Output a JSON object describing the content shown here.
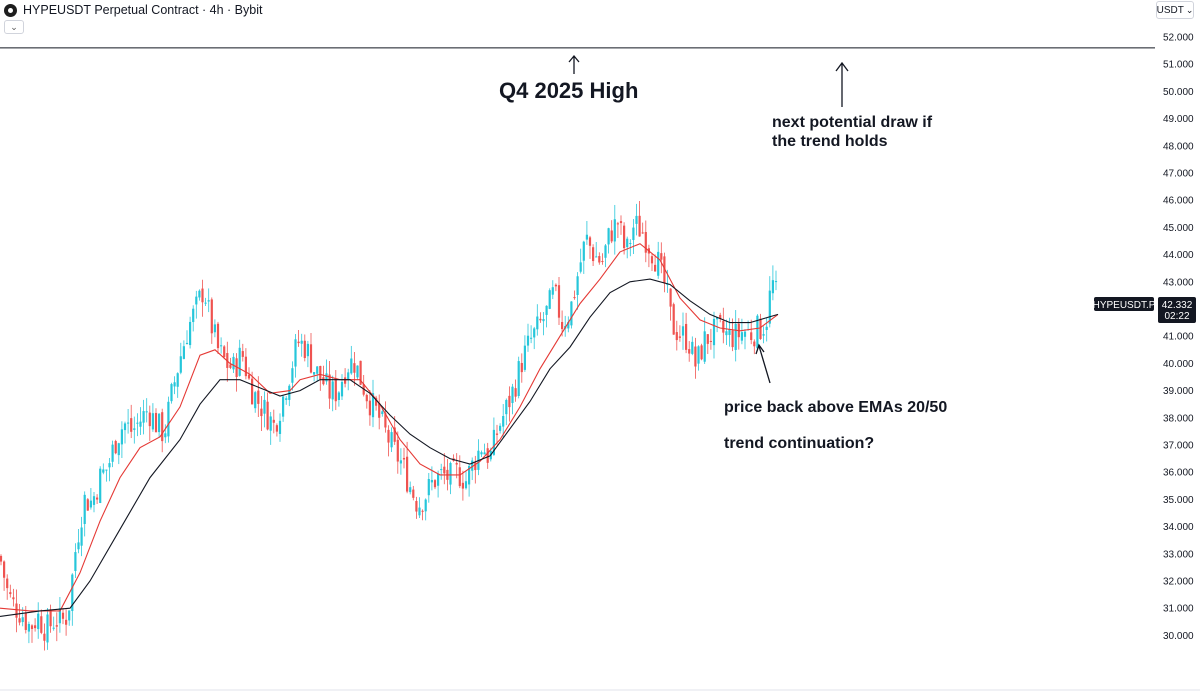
{
  "header": {
    "title": "HYPEUSDT Perpetual Contract · 4h · Bybit",
    "collapse_icon": "chevron-down-icon"
  },
  "currency": {
    "label": "USDT",
    "icon": "chevron-down-icon"
  },
  "colors": {
    "up": "#26c6da",
    "down": "#ef5350",
    "ema20": "#e53935",
    "ema50": "#131722",
    "level": "#131722",
    "axis_text": "#131722"
  },
  "chart_data": {
    "type": "candlestick",
    "symbol": "HYPEUSDT Perpetual Contract",
    "timeframe": "4h",
    "exchange": "Bybit",
    "y_axis": {
      "ticks": [
        "52.000",
        "51.000",
        "50.000",
        "49.000",
        "48.000",
        "47.000",
        "46.000",
        "45.000",
        "44.000",
        "43.000",
        "42.000",
        "41.000",
        "40.000",
        "39.000",
        "38.000",
        "37.000",
        "36.000",
        "35.000",
        "34.000",
        "33.000",
        "32.000",
        "31.000",
        "30.000"
      ],
      "range": [
        29.3,
        52.9
      ]
    },
    "last_price": {
      "symbol_label": "HYPEUSDT.P",
      "value": 42.332,
      "value_label": "42.332",
      "countdown": "02:22"
    },
    "levels": [
      {
        "name": "Q4 2025 High",
        "price": 51.6
      }
    ],
    "price_path": [
      [
        0,
        32.9
      ],
      [
        8,
        31.5
      ],
      [
        14,
        31.1
      ],
      [
        22,
        30.8
      ],
      [
        30,
        30.3
      ],
      [
        38,
        30.7
      ],
      [
        46,
        30.2
      ],
      [
        55,
        30.6
      ],
      [
        62,
        30.5
      ],
      [
        68,
        30.8
      ],
      [
        76,
        33.3
      ],
      [
        84,
        35.0
      ],
      [
        92,
        34.9
      ],
      [
        100,
        35.8
      ],
      [
        108,
        36.2
      ],
      [
        116,
        37.2
      ],
      [
        124,
        37.8
      ],
      [
        132,
        37.5
      ],
      [
        140,
        37.9
      ],
      [
        148,
        38.3
      ],
      [
        156,
        37.8
      ],
      [
        164,
        37.4
      ],
      [
        172,
        38.9
      ],
      [
        180,
        40.2
      ],
      [
        188,
        41.3
      ],
      [
        196,
        42.0
      ],
      [
        204,
        42.8
      ],
      [
        210,
        41.6
      ],
      [
        218,
        40.5
      ],
      [
        226,
        40.0
      ],
      [
        234,
        39.8
      ],
      [
        242,
        40.4
      ],
      [
        250,
        39.2
      ],
      [
        258,
        38.6
      ],
      [
        266,
        38.2
      ],
      [
        274,
        37.7
      ],
      [
        282,
        38.6
      ],
      [
        290,
        39.7
      ],
      [
        298,
        40.8
      ],
      [
        306,
        40.6
      ],
      [
        314,
        39.8
      ],
      [
        322,
        39.4
      ],
      [
        330,
        38.9
      ],
      [
        338,
        39.0
      ],
      [
        346,
        39.9
      ],
      [
        354,
        40.1
      ],
      [
        362,
        39.3
      ],
      [
        370,
        38.6
      ],
      [
        378,
        38.1
      ],
      [
        386,
        37.4
      ],
      [
        394,
        36.8
      ],
      [
        402,
        36.3
      ],
      [
        410,
        35.5
      ],
      [
        418,
        34.8
      ],
      [
        426,
        35.2
      ],
      [
        434,
        35.7
      ],
      [
        442,
        35.9
      ],
      [
        450,
        35.8
      ],
      [
        458,
        36.0
      ],
      [
        466,
        35.7
      ],
      [
        474,
        36.4
      ],
      [
        482,
        37.0
      ],
      [
        490,
        36.5
      ],
      [
        498,
        37.6
      ],
      [
        506,
        38.3
      ],
      [
        514,
        39.1
      ],
      [
        522,
        40.1
      ],
      [
        530,
        40.8
      ],
      [
        538,
        41.3
      ],
      [
        546,
        41.8
      ],
      [
        554,
        42.6
      ],
      [
        562,
        41.5
      ],
      [
        570,
        41.9
      ],
      [
        578,
        43.3
      ],
      [
        586,
        44.6
      ],
      [
        594,
        44.0
      ],
      [
        602,
        43.7
      ],
      [
        610,
        44.8
      ],
      [
        618,
        45.2
      ],
      [
        626,
        44.0
      ],
      [
        634,
        45.1
      ],
      [
        642,
        44.9
      ],
      [
        650,
        44.3
      ],
      [
        658,
        43.7
      ],
      [
        666,
        42.7
      ],
      [
        672,
        41.4
      ],
      [
        680,
        41.1
      ],
      [
        688,
        40.9
      ],
      [
        696,
        39.9
      ],
      [
        704,
        40.8
      ],
      [
        712,
        41.1
      ],
      [
        720,
        41.2
      ],
      [
        728,
        41.0
      ],
      [
        736,
        41.0
      ],
      [
        744,
        41.2
      ],
      [
        752,
        41.1
      ],
      [
        760,
        41.3
      ],
      [
        766,
        41.5
      ],
      [
        772,
        43.0
      ],
      [
        778,
        42.3
      ]
    ],
    "ema20_path": [
      [
        0,
        31.0
      ],
      [
        30,
        30.9
      ],
      [
        60,
        30.9
      ],
      [
        80,
        32.3
      ],
      [
        100,
        34.2
      ],
      [
        120,
        35.8
      ],
      [
        140,
        36.9
      ],
      [
        160,
        37.3
      ],
      [
        180,
        38.4
      ],
      [
        200,
        40.3
      ],
      [
        215,
        40.5
      ],
      [
        230,
        40.0
      ],
      [
        250,
        39.6
      ],
      [
        270,
        38.9
      ],
      [
        290,
        39.0
      ],
      [
        300,
        39.4
      ],
      [
        320,
        39.6
      ],
      [
        340,
        39.4
      ],
      [
        360,
        39.4
      ],
      [
        380,
        38.5
      ],
      [
        400,
        37.2
      ],
      [
        420,
        36.3
      ],
      [
        440,
        35.9
      ],
      [
        460,
        35.9
      ],
      [
        480,
        36.4
      ],
      [
        500,
        37.2
      ],
      [
        520,
        38.4
      ],
      [
        540,
        39.8
      ],
      [
        560,
        41.0
      ],
      [
        580,
        42.2
      ],
      [
        600,
        43.1
      ],
      [
        620,
        44.1
      ],
      [
        640,
        44.4
      ],
      [
        660,
        43.8
      ],
      [
        680,
        42.4
      ],
      [
        700,
        41.6
      ],
      [
        720,
        41.3
      ],
      [
        740,
        41.2
      ],
      [
        760,
        41.3
      ],
      [
        778,
        41.8
      ]
    ],
    "ema50_path": [
      [
        0,
        30.7
      ],
      [
        40,
        30.9
      ],
      [
        70,
        31.0
      ],
      [
        90,
        32.0
      ],
      [
        120,
        33.9
      ],
      [
        150,
        35.8
      ],
      [
        180,
        37.2
      ],
      [
        200,
        38.5
      ],
      [
        220,
        39.4
      ],
      [
        240,
        39.4
      ],
      [
        260,
        39.1
      ],
      [
        280,
        38.8
      ],
      [
        300,
        39.0
      ],
      [
        320,
        39.4
      ],
      [
        350,
        39.4
      ],
      [
        370,
        38.9
      ],
      [
        390,
        38.1
      ],
      [
        410,
        37.4
      ],
      [
        430,
        36.9
      ],
      [
        450,
        36.5
      ],
      [
        470,
        36.3
      ],
      [
        490,
        36.6
      ],
      [
        510,
        37.6
      ],
      [
        530,
        38.6
      ],
      [
        550,
        39.8
      ],
      [
        570,
        40.6
      ],
      [
        590,
        41.7
      ],
      [
        610,
        42.6
      ],
      [
        630,
        43.0
      ],
      [
        650,
        43.1
      ],
      [
        670,
        42.9
      ],
      [
        690,
        42.3
      ],
      [
        710,
        41.8
      ],
      [
        730,
        41.5
      ],
      [
        750,
        41.5
      ],
      [
        778,
        41.8
      ]
    ],
    "annotations": {
      "q4_high": "Q4 2025 High",
      "next_draw": "next potential draw if\nthe trend holds",
      "price_back": "price back above EMAs 20/50",
      "trend": "trend continuation?"
    }
  }
}
